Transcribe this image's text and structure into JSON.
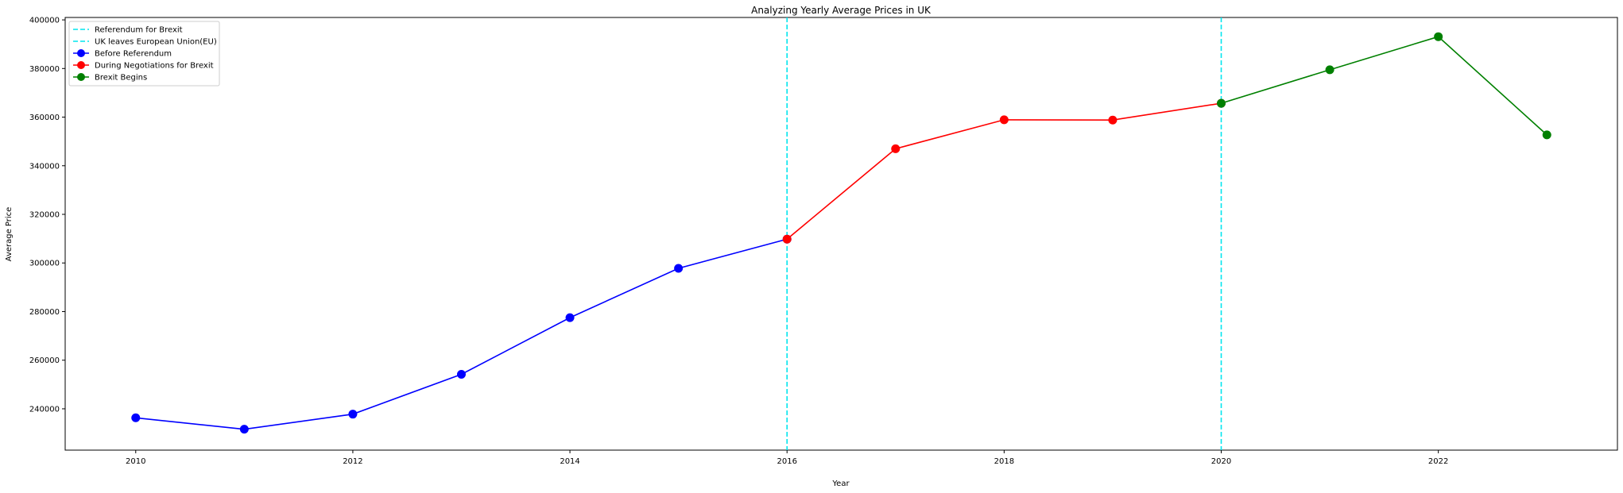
{
  "chart_data": {
    "type": "line",
    "title": "Analyzing Yearly Average Prices in UK",
    "xlabel": "Year",
    "ylabel": "Average Price",
    "xlim": [
      2009.35,
      2023.65
    ],
    "ylim": [
      223000,
      401000
    ],
    "xticks": [
      2010,
      2012,
      2014,
      2016,
      2018,
      2020,
      2022
    ],
    "yticks": [
      240000,
      260000,
      280000,
      300000,
      320000,
      340000,
      360000,
      380000,
      400000
    ],
    "grid": false,
    "legend_position": "top-left",
    "vlines": [
      {
        "name": "Referendum for Brexit",
        "x": 2016,
        "color": "#00e5ee"
      },
      {
        "name": "UK leaves European Union(EU)",
        "x": 2020,
        "color": "#00e5ee"
      }
    ],
    "series": [
      {
        "name": "Before Referendum",
        "color": "#0000ff",
        "x": [
          2010,
          2011,
          2012,
          2013,
          2014,
          2015,
          2016
        ],
        "values": [
          236300,
          231600,
          237800,
          254200,
          277500,
          297800,
          309800
        ]
      },
      {
        "name": "During Negotiations for Brexit",
        "color": "#ff0000",
        "x": [
          2016,
          2017,
          2018,
          2019,
          2020
        ],
        "values": [
          309800,
          347000,
          358900,
          358800,
          365700
        ]
      },
      {
        "name": "Brexit Begins",
        "color": "#008000",
        "x": [
          2020,
          2021,
          2022,
          2023
        ],
        "values": [
          365700,
          379500,
          393100,
          352700
        ]
      }
    ]
  }
}
